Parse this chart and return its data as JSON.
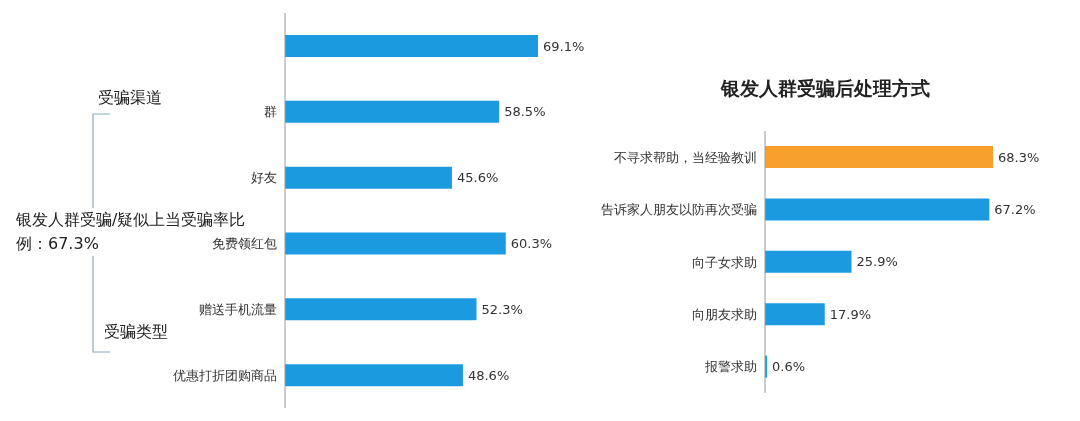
{
  "chart_data": [
    {
      "type": "bar",
      "orientation": "horizontal",
      "categories": [
        null,
        "群",
        "好友",
        "免费领红包",
        "赠送手机流量",
        "优惠打折团购商品"
      ],
      "values": [
        69.1,
        58.5,
        45.6,
        60.3,
        52.3,
        48.6
      ],
      "color": "#1b9ae0",
      "value_labels": [
        "69.1%",
        "58.5%",
        "45.6%",
        "60.3%",
        "52.3%",
        "48.6%"
      ],
      "annotations": [
        "受骗渠道",
        "受骗类型",
        "银发人群受骗/疑似上当受骗率比例：67.3%"
      ]
    },
    {
      "type": "bar",
      "orientation": "horizontal",
      "title": "银发人群受骗后处理方式",
      "categories": [
        "不寻求帮助，当经验教训",
        "告诉家人朋友以防再次受骗",
        "向子女求助",
        "向朋友求助",
        "报警求助"
      ],
      "values": [
        68.3,
        67.2,
        25.9,
        17.9,
        0.6
      ],
      "colors": [
        "#f7a02c",
        "#1b9ae0",
        "#1b9ae0",
        "#1b9ae0",
        "#1b9ae0"
      ],
      "value_labels": [
        "68.3%",
        "67.2%",
        "25.9%",
        "17.9%",
        "0.6%"
      ]
    }
  ]
}
